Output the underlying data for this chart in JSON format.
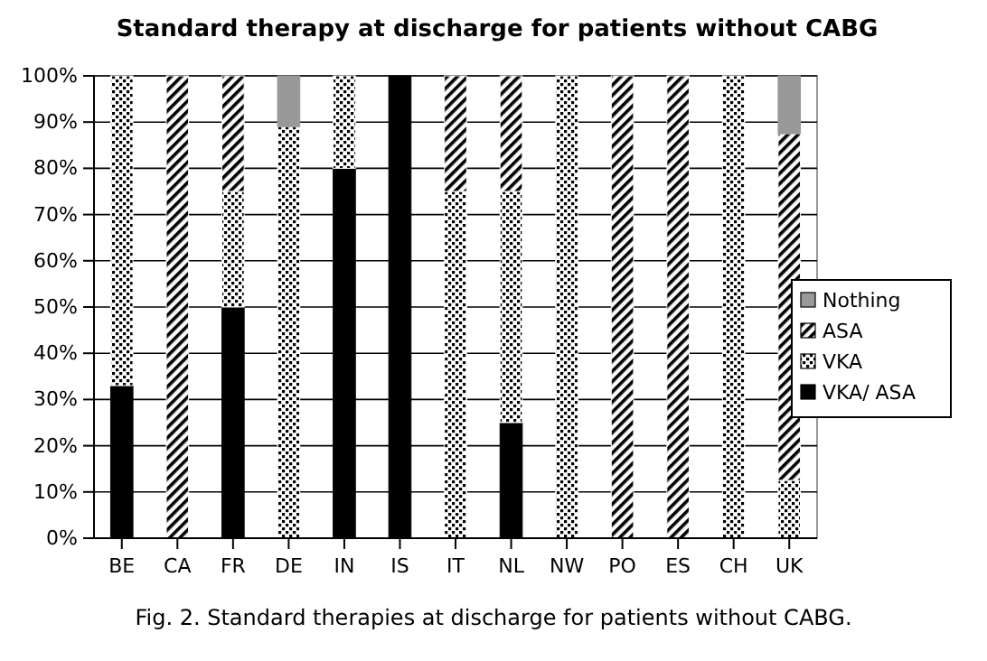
{
  "chart_data": {
    "type": "bar",
    "stacked": true,
    "title": "Standard therapy at discharge for patients without CABG",
    "categories": [
      "BE",
      "CA",
      "FR",
      "DE",
      "IN",
      "IS",
      "IT",
      "NL",
      "NW",
      "PO",
      "ES",
      "CH",
      "UK"
    ],
    "series": [
      {
        "name": "VKA/ ASA",
        "color": "#000000",
        "values": [
          33,
          0,
          50,
          0,
          80,
          100,
          0,
          25,
          0,
          0,
          0,
          0,
          0
        ]
      },
      {
        "name": "VKA",
        "color": "#ffffff",
        "values": [
          67,
          0,
          25,
          89,
          20,
          0,
          75,
          50,
          100,
          0,
          0,
          100,
          12.5
        ]
      },
      {
        "name": "ASA",
        "color": "#fafafa",
        "values": [
          0,
          100,
          25,
          0,
          0,
          0,
          25,
          25,
          0,
          100,
          100,
          0,
          75
        ]
      },
      {
        "name": "Nothing",
        "color": "#999999",
        "values": [
          0,
          0,
          0,
          11,
          0,
          0,
          0,
          0,
          0,
          0,
          0,
          0,
          12.5
        ]
      }
    ],
    "ylim": [
      0,
      100
    ],
    "yticks": [
      {
        "value": 0,
        "label": "0%"
      },
      {
        "value": 10,
        "label": "10%"
      },
      {
        "value": 20,
        "label": "20%"
      },
      {
        "value": 30,
        "label": "30%"
      },
      {
        "value": 40,
        "label": "40%"
      },
      {
        "value": 50,
        "label": "50%"
      },
      {
        "value": 60,
        "label": "60%"
      },
      {
        "value": 70,
        "label": "70%"
      },
      {
        "value": 80,
        "label": "80%"
      },
      {
        "value": 90,
        "label": "90%"
      },
      {
        "value": 100,
        "label": "100%"
      }
    ],
    "grid": "y",
    "legend": "right",
    "annotations": [
      "Fig. 2. Standard therapies at discharge for patients without CABG."
    ]
  }
}
